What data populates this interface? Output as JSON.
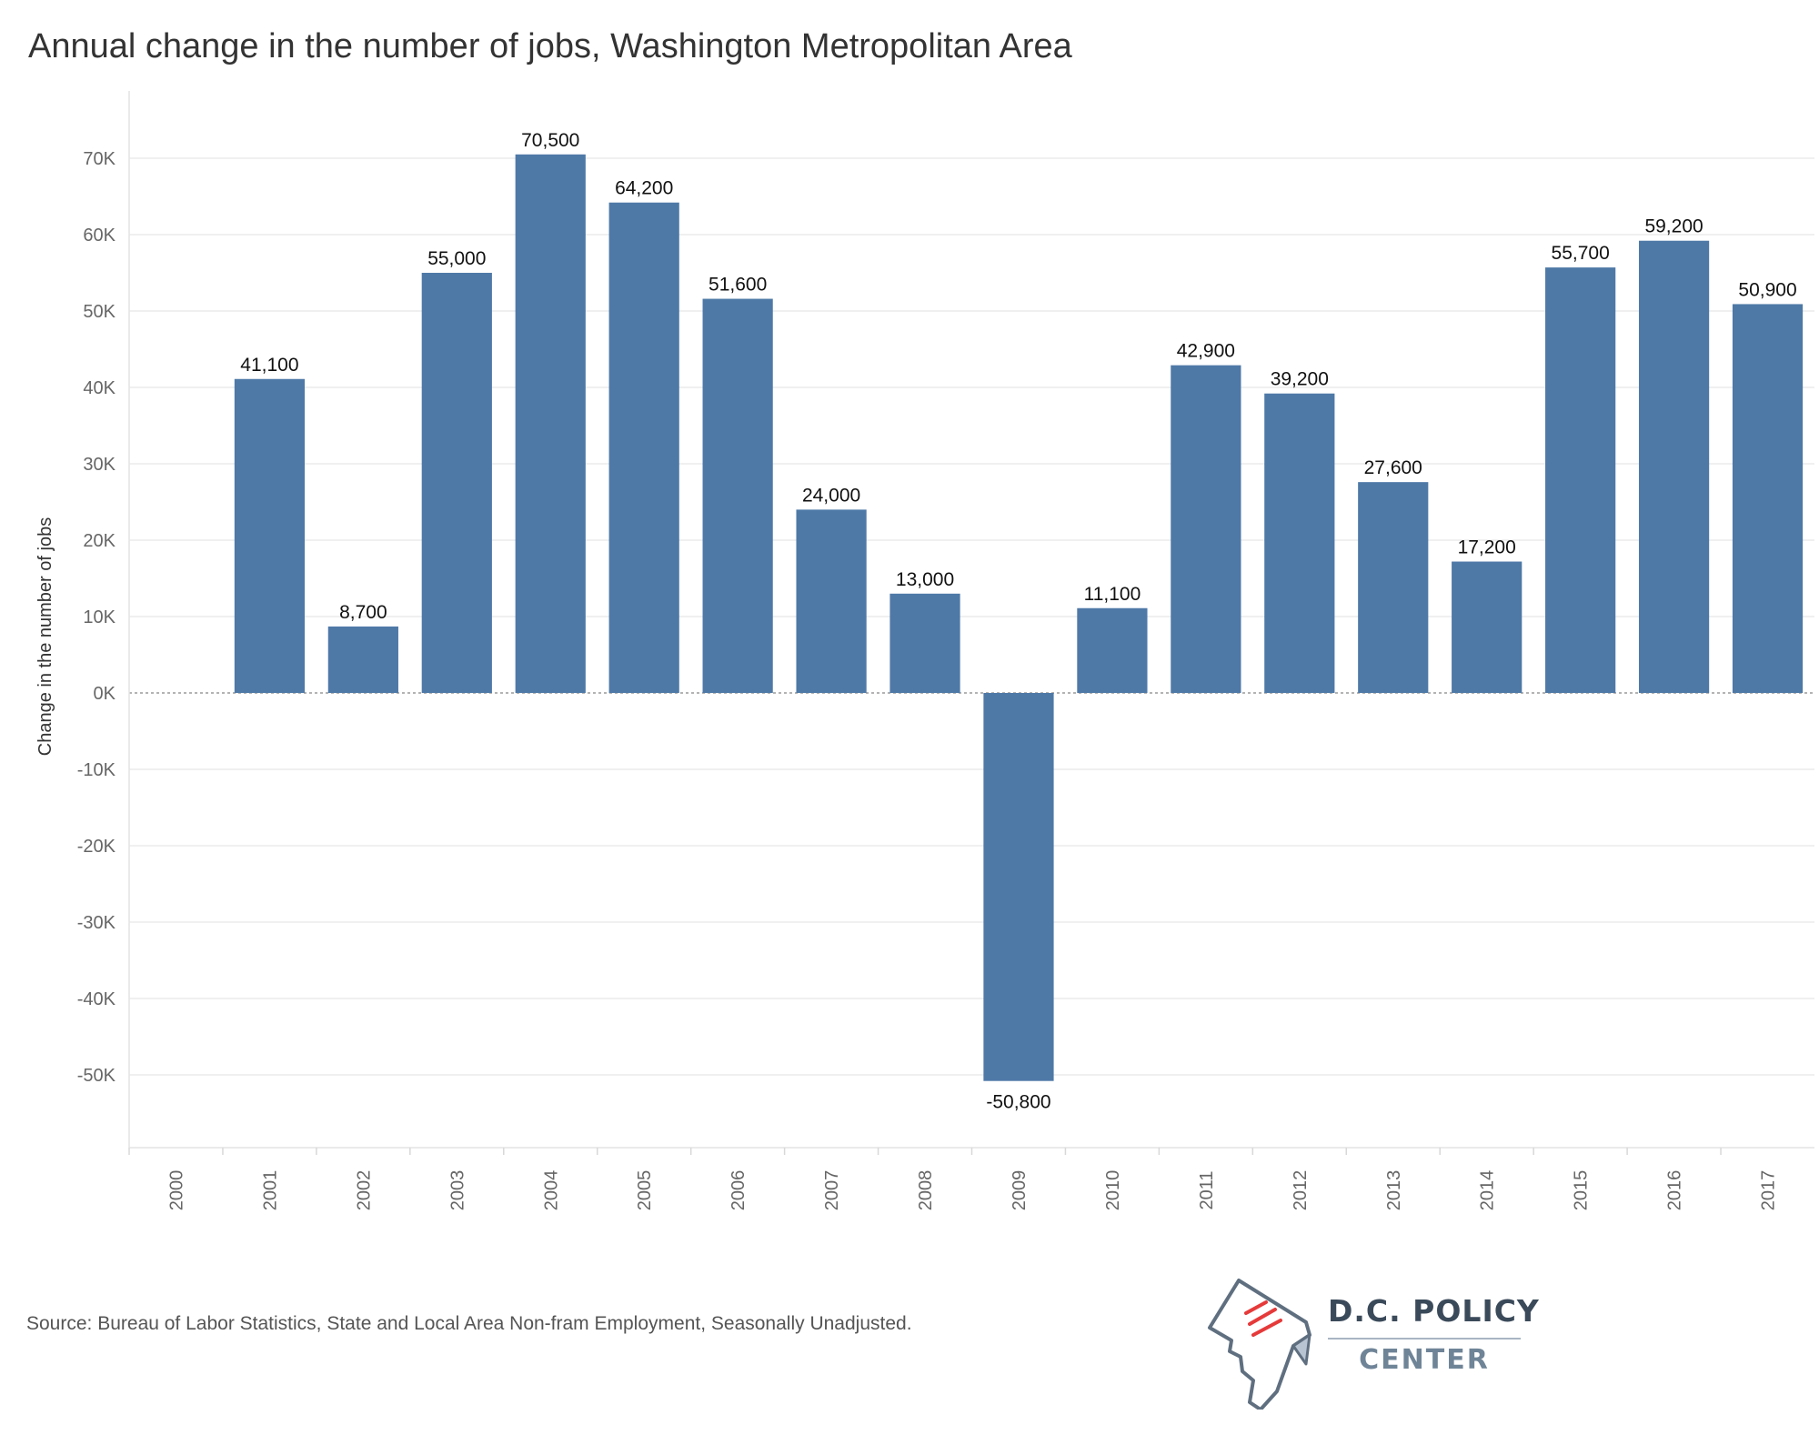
{
  "title": "Annual change in the number of jobs, Washington Metropolitan Area",
  "source": "Source: Bureau of Labor Statistics,  State and Local Area Non-fram Employment, Seasonally Unadjusted.",
  "logo": {
    "line1": "D.C. POLICY",
    "line2": "CENTER"
  },
  "colors": {
    "bar": "#4e79a7",
    "grid": "#ececec",
    "zero_line": "#9a9a9a",
    "text": "#333333",
    "tick_text": "#666666"
  },
  "chart_data": {
    "type": "bar",
    "title": "Annual change in the number of jobs, Washington Metropolitan Area",
    "xlabel": "",
    "ylabel": "Change in the number of jobs",
    "categories": [
      "2000",
      "2001",
      "2002",
      "2003",
      "2004",
      "2005",
      "2006",
      "2007",
      "2008",
      "2009",
      "2010",
      "2011",
      "2012",
      "2013",
      "2014",
      "2015",
      "2016",
      "2017"
    ],
    "values": [
      null,
      41100,
      8700,
      55000,
      70500,
      64200,
      51600,
      24000,
      13000,
      -50800,
      11100,
      42900,
      39200,
      27600,
      17200,
      55700,
      59200,
      50900
    ],
    "data_labels": [
      "",
      "41,100",
      "8,700",
      "55,000",
      "70,500",
      "64,200",
      "51,600",
      "24,000",
      "13,000",
      "-50,800",
      "11,100",
      "42,900",
      "39,200",
      "27,600",
      "17,200",
      "55,700",
      "59,200",
      "50,900"
    ],
    "ylim": [
      -60000,
      78000
    ],
    "yticks": [
      70000,
      60000,
      50000,
      40000,
      30000,
      20000,
      10000,
      0,
      -10000,
      -20000,
      -30000,
      -40000,
      -50000
    ],
    "ytick_labels": [
      "70K",
      "60K",
      "50K",
      "40K",
      "30K",
      "20K",
      "10K",
      "0K",
      "-10K",
      "-20K",
      "-30K",
      "-40K",
      "-50K"
    ],
    "grid": true,
    "legend": "none"
  }
}
